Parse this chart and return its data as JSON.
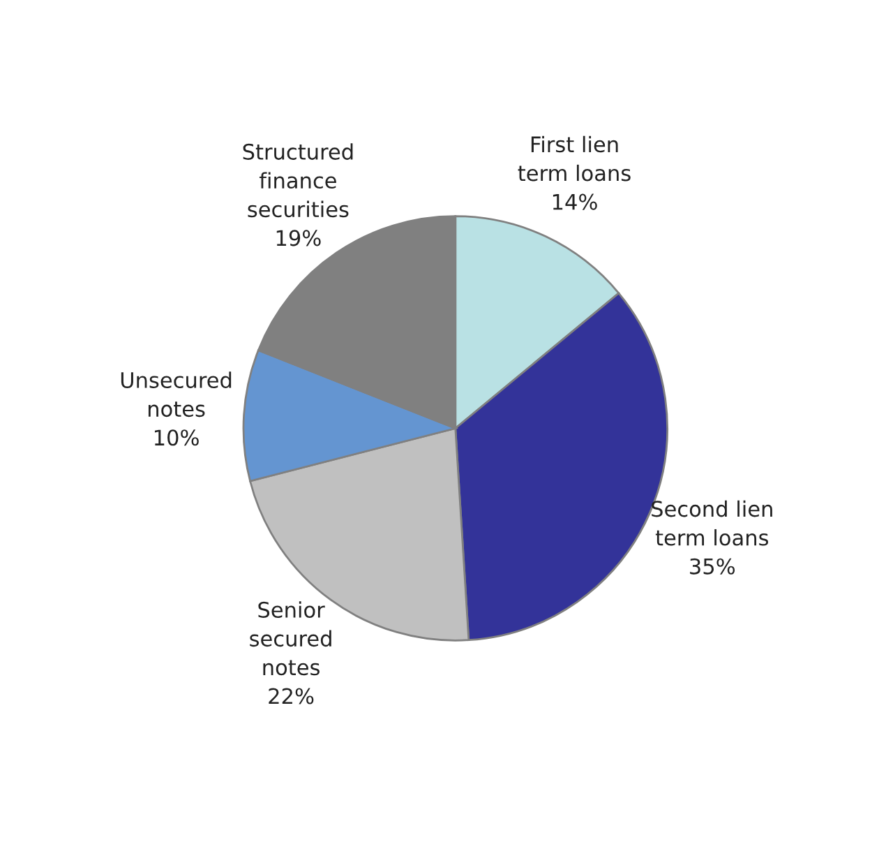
{
  "chart_data": {
    "type": "pie",
    "categories": [
      "First lien\nterm loans",
      "Second lien\nterm loans",
      "Senior\nsecured\nnotes",
      "Unsecured\nnotes",
      "Structured\nfinance\nsecurities"
    ],
    "values": [
      14,
      35,
      22,
      10,
      19
    ],
    "value_labels": [
      "14%",
      "35%",
      "22%",
      "10%",
      "19%"
    ],
    "colors": [
      "#b9e1e4",
      "#333399",
      "#c0c0c0",
      "#6495d1",
      "#808080"
    ],
    "legend": false
  }
}
